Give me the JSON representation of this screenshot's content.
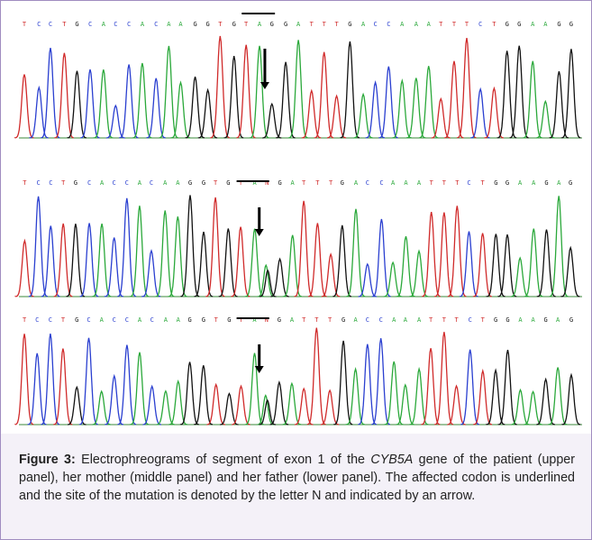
{
  "figure": {
    "panels": [
      {
        "bases": [
          "T",
          "C",
          "C",
          "T",
          "G",
          "C",
          "A",
          "C",
          "C",
          "A",
          "C",
          "A",
          "A",
          "G",
          "G",
          "T",
          "G",
          "T",
          "A",
          "G",
          "G",
          "A",
          "T",
          "T",
          "T",
          "G",
          "A",
          "C",
          "C",
          "A",
          "A",
          "A",
          "T",
          "T",
          "T",
          "C",
          "T",
          "G",
          "G",
          "A",
          "A",
          "G",
          "G"
        ]
      },
      {
        "bases": [
          "T",
          "C",
          "C",
          "T",
          "G",
          "C",
          "A",
          "C",
          "C",
          "A",
          "C",
          "A",
          "A",
          "G",
          "G",
          "T",
          "G",
          "T",
          "A",
          "N",
          "G",
          "A",
          "T",
          "T",
          "T",
          "G",
          "A",
          "C",
          "C",
          "A",
          "A",
          "A",
          "T",
          "T",
          "T",
          "C",
          "T",
          "G",
          "G",
          "A",
          "A",
          "G",
          "A",
          "G"
        ]
      },
      {
        "bases": [
          "T",
          "C",
          "C",
          "T",
          "G",
          "C",
          "A",
          "C",
          "C",
          "A",
          "C",
          "A",
          "A",
          "G",
          "G",
          "T",
          "G",
          "T",
          "A",
          "N",
          "G",
          "A",
          "T",
          "T",
          "T",
          "G",
          "A",
          "C",
          "C",
          "A",
          "A",
          "A",
          "T",
          "T",
          "T",
          "C",
          "T",
          "G",
          "G",
          "A",
          "A",
          "G",
          "A",
          "G"
        ]
      }
    ],
    "caption": {
      "label": "Figure 3:",
      "text_before": " Electrophreograms of segment of exon 1 of the ",
      "gene": "CYB5A",
      "text_after": " gene of the patient (upper panel), her mother (middle panel) and her father (lower panel). The affected codon is underlined and the site of the mutation is denoted by the letter N and indicated by an arrow."
    }
  }
}
